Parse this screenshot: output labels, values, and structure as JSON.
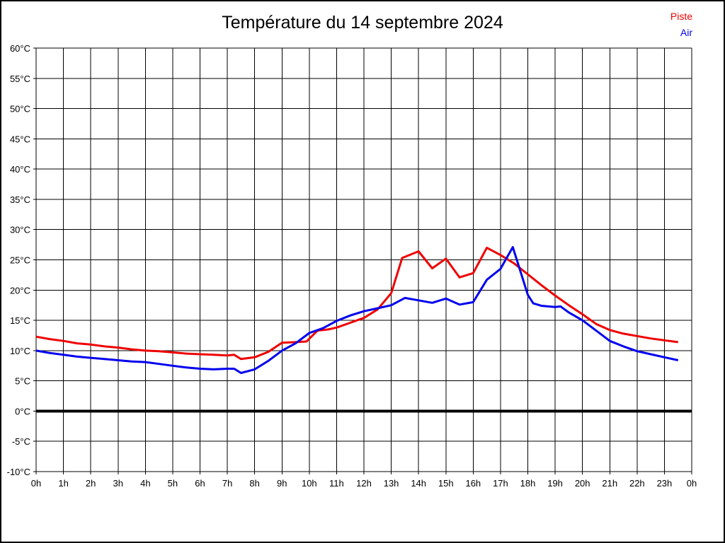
{
  "window": {
    "background": "#ffffff",
    "frame_color": "#000000"
  },
  "chart_data": {
    "type": "line",
    "title": "Température du 14 septembre 2024",
    "xlabel": "",
    "ylabel": "",
    "xlim": [
      0,
      24
    ],
    "ylim": [
      -10,
      60
    ],
    "grid": true,
    "grid_color": "#000000",
    "zero_line": {
      "value": 0,
      "color": "#000000",
      "width": 4
    },
    "legend_position": "top-right",
    "x_tick_hours": [
      0,
      1,
      2,
      3,
      4,
      5,
      6,
      7,
      8,
      9,
      10,
      11,
      12,
      13,
      14,
      15,
      16,
      17,
      18,
      19,
      20,
      21,
      22,
      23,
      24
    ],
    "x_tick_labels": [
      "0h",
      "1h",
      "2h",
      "3h",
      "4h",
      "5h",
      "6h",
      "7h",
      "8h",
      "9h",
      "10h",
      "11h",
      "12h",
      "13h",
      "14h",
      "15h",
      "16h",
      "17h",
      "18h",
      "19h",
      "20h",
      "21h",
      "22h",
      "23h",
      "0h"
    ],
    "y_tick_values": [
      -10,
      -5,
      0,
      5,
      10,
      15,
      20,
      25,
      30,
      35,
      40,
      45,
      50,
      55,
      60
    ],
    "y_tick_labels": [
      "-10°C",
      "-5°C",
      "0°C",
      "5°C",
      "10°C",
      "15°C",
      "20°C",
      "25°C",
      "30°C",
      "35°C",
      "40°C",
      "45°C",
      "50°C",
      "55°C",
      "60°C"
    ],
    "series": [
      {
        "name": "Piste",
        "color": "#ee0000",
        "x": [
          0,
          0.5,
          1,
          1.5,
          2,
          2.5,
          3,
          3.5,
          4,
          4.5,
          5,
          5.5,
          6,
          6.5,
          7,
          7.25,
          7.5,
          8,
          8.5,
          9,
          9.5,
          9.9,
          10.3,
          10.7,
          11,
          11.5,
          12,
          12.5,
          13,
          13.4,
          14,
          14.5,
          15,
          15.5,
          16,
          16.5,
          17,
          17.5,
          18,
          18.5,
          19,
          19.5,
          20,
          20.5,
          21,
          21.5,
          22,
          22.5,
          23,
          23.5
        ],
        "values": [
          12.3,
          11.9,
          11.6,
          11.2,
          11.0,
          10.7,
          10.5,
          10.2,
          10.0,
          9.9,
          9.7,
          9.5,
          9.4,
          9.3,
          9.2,
          9.3,
          8.6,
          8.9,
          9.8,
          11.3,
          11.4,
          11.5,
          13.3,
          13.5,
          13.8,
          14.6,
          15.4,
          16.8,
          19.5,
          25.3,
          26.4,
          23.6,
          25.2,
          22.1,
          22.8,
          27.0,
          25.8,
          24.4,
          22.6,
          20.8,
          19.1,
          17.5,
          16.0,
          14.4,
          13.4,
          12.8,
          12.4,
          12.0,
          11.7,
          11.4
        ]
      },
      {
        "name": "Air",
        "color": "#0000ee",
        "x": [
          0,
          0.5,
          1,
          1.5,
          2,
          2.5,
          3,
          3.5,
          4,
          4.5,
          5,
          5.5,
          6,
          6.5,
          7,
          7.25,
          7.5,
          8,
          8.5,
          9,
          9.5,
          10,
          10.5,
          11,
          11.5,
          12,
          12.5,
          13,
          13.5,
          14,
          14.5,
          15,
          15.5,
          16,
          16.5,
          17,
          17.45,
          18,
          18.2,
          18.5,
          19,
          19.2,
          19.5,
          20,
          20.5,
          21,
          21.5,
          22,
          22.5,
          23,
          23.5
        ],
        "values": [
          10.0,
          9.6,
          9.3,
          9.0,
          8.8,
          8.6,
          8.4,
          8.2,
          8.1,
          7.8,
          7.5,
          7.2,
          7.0,
          6.9,
          7.0,
          7.0,
          6.3,
          6.9,
          8.3,
          10.0,
          11.2,
          12.9,
          13.7,
          14.9,
          15.8,
          16.5,
          17.0,
          17.5,
          18.7,
          18.3,
          17.9,
          18.6,
          17.6,
          18.0,
          21.7,
          23.5,
          27.1,
          19.2,
          17.8,
          17.4,
          17.2,
          17.3,
          16.3,
          15.0,
          13.3,
          11.6,
          10.7,
          9.9,
          9.4,
          8.9,
          8.4
        ]
      }
    ]
  }
}
